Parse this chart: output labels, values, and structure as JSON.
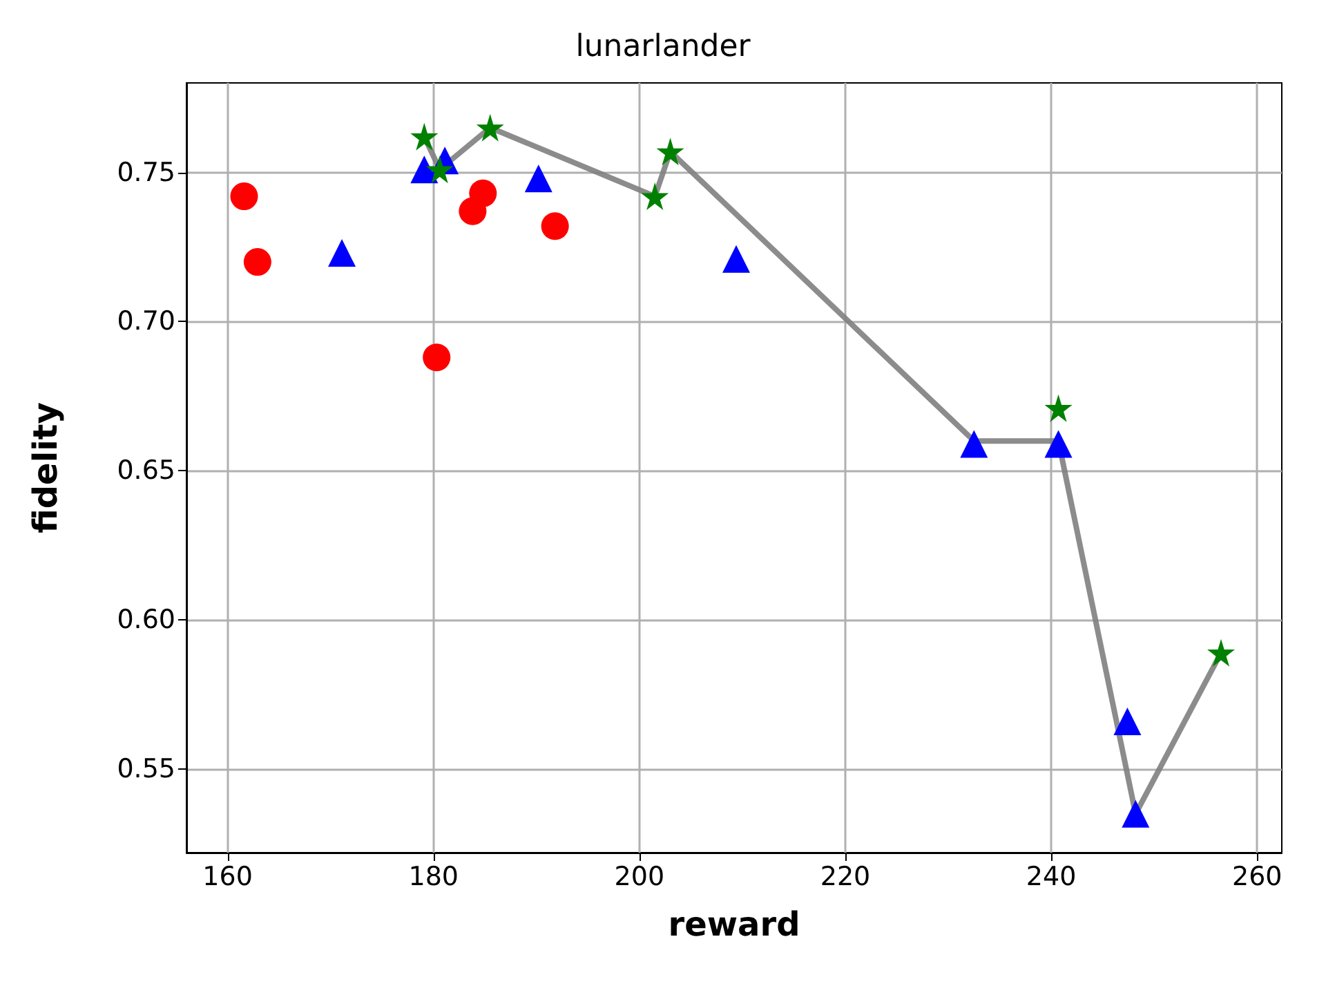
{
  "chart_data": {
    "type": "scatter",
    "title": "lunarlander",
    "xlabel": "reward",
    "ylabel": "fidelity",
    "xlim": [
      156,
      262.4
    ],
    "xticks": [
      160,
      180,
      200,
      220,
      240,
      260
    ],
    "ylim": [
      0.522,
      0.78
    ],
    "yticks": [
      0.55,
      {
        "value": 0.6,
        "label": "0.60"
      },
      0.65,
      {
        "value": 0.7,
        "label": "0.70"
      },
      0.75
    ],
    "grid": true,
    "series": [
      {
        "type": "line",
        "color": "#808080",
        "marker": "none",
        "line_style": "solid",
        "x": [
          179.1,
          180.6,
          185.5,
          201.5,
          203.0,
          232.5,
          240.7,
          248.2,
          256.5
        ],
        "values": [
          0.762,
          0.751,
          0.765,
          0.742,
          0.757,
          0.66,
          0.66,
          0.535,
          0.589
        ]
      },
      {
        "color": "#ff0000",
        "marker": "circle",
        "x": [
          161.6,
          162.9,
          180.3,
          184.8,
          183.8,
          191.8
        ],
        "values": [
          0.742,
          0.72,
          0.688,
          0.743,
          0.737,
          0.732
        ]
      },
      {
        "color": "#0000ff",
        "marker": "triangle",
        "x": [
          171.1,
          179.1,
          190.2,
          209.4,
          247.4,
          181.1,
          232.5,
          240.7,
          248.2
        ],
        "values": [
          0.723,
          0.751,
          0.748,
          0.721,
          0.566,
          0.754,
          0.659,
          0.659,
          0.535
        ]
      },
      {
        "color": "#008000",
        "marker": "star",
        "x": [
          179.1,
          180.6,
          185.5,
          201.5,
          203.0,
          240.7,
          256.5
        ],
        "values": [
          0.762,
          0.751,
          0.765,
          0.742,
          0.757,
          0.671,
          0.589
        ]
      }
    ]
  }
}
